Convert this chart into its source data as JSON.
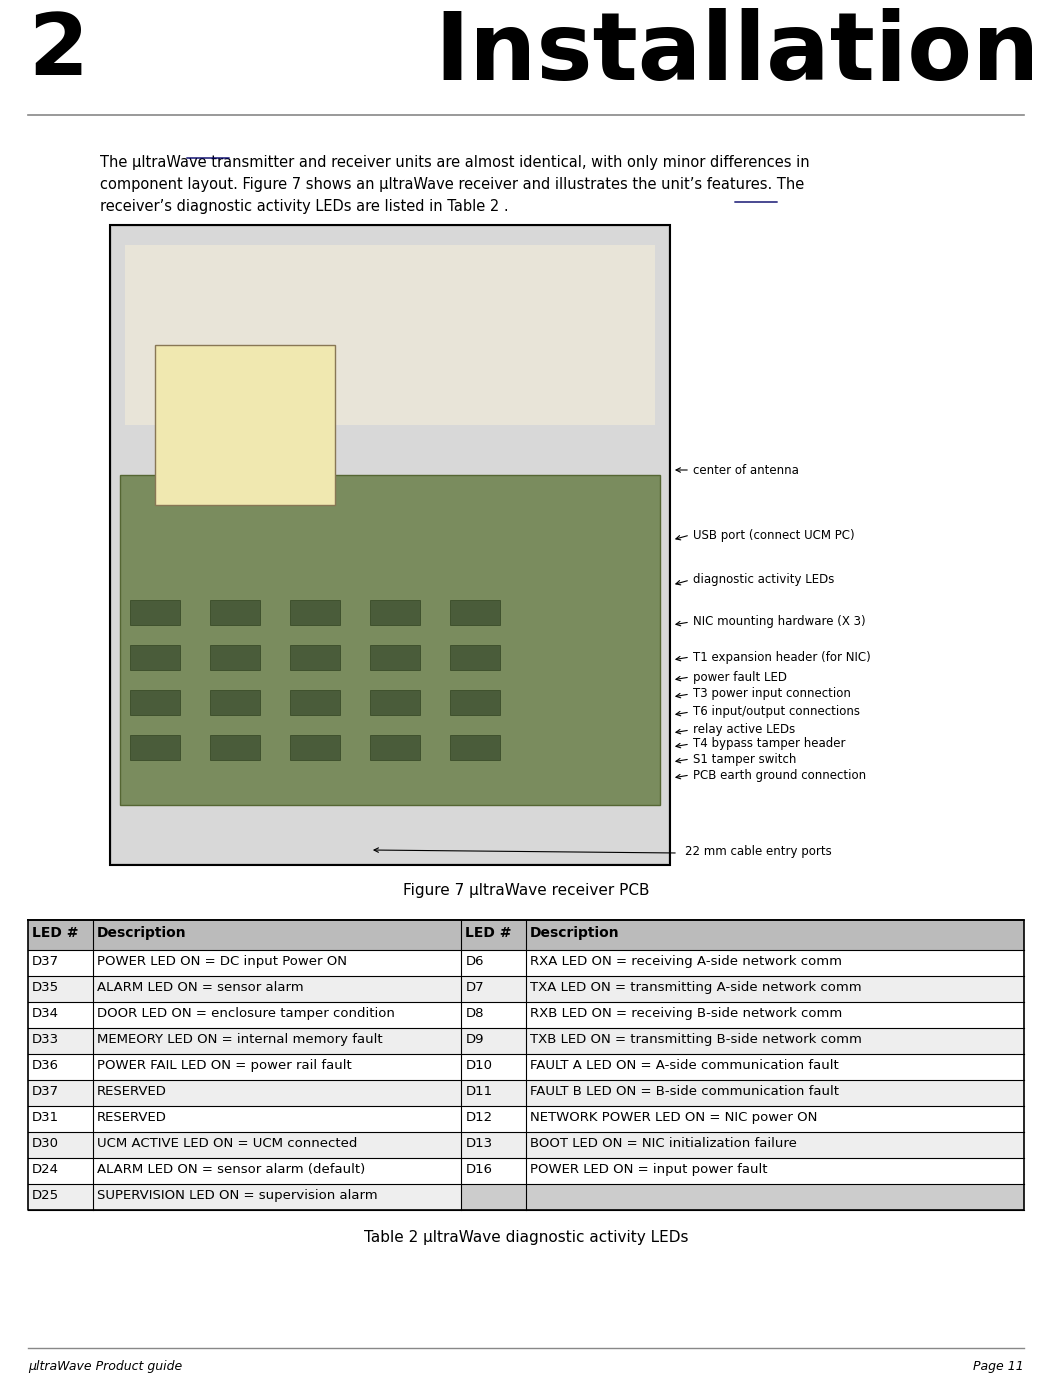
{
  "page_number": "2",
  "title": "Installation",
  "body_text": "The μltraWave transmitter and receiver units are almost identical, with only minor differences in\ncomponent layout. Figure 7 shows an μltraWave receiver and illustrates the unit’s features. The\nreceiver’s diagnostic activity LEDs are listed in Table 2 .",
  "figure_caption": "Figure 7 μltraWave receiver PCB",
  "table_caption": "Table 2 μltraWave diagnostic activity LEDs",
  "footer_left": "μltraWave Product guide",
  "footer_right": "Page 11",
  "annotations": [
    "center of antenna",
    "USB port (connect UCM PC)",
    "diagnostic activity LEDs",
    "NIC mounting hardware (X 3)",
    "T1 expansion header (for NIC)",
    "power fault LED",
    "T3 power input connection",
    "T6 input/output connections",
    "relay active LEDs",
    "T4 bypass tamper header",
    "S1 tamper switch",
    "PCB earth ground connection",
    "22 mm cable entry ports"
  ],
  "table_headers": [
    "LED #",
    "Description",
    "LED #",
    "Description"
  ],
  "table_rows": [
    [
      "D37",
      "POWER LED ON = DC input Power ON",
      "D6",
      "RXA LED ON = receiving A-side network comm"
    ],
    [
      "D35",
      "ALARM LED ON = sensor alarm",
      "D7",
      "TXA LED ON = transmitting A-side network comm"
    ],
    [
      "D34",
      "DOOR LED ON = enclosure tamper condition",
      "D8",
      "RXB LED ON = receiving B-side network comm"
    ],
    [
      "D33",
      "MEMEORY LED ON = internal memory fault",
      "D9",
      "TXB LED ON = transmitting B-side network comm"
    ],
    [
      "D36",
      "POWER FAIL LED ON = power rail fault",
      "D10",
      "FAULT A LED ON = A-side communication fault"
    ],
    [
      "D37",
      "RESERVED",
      "D11",
      "FAULT B LED ON = B-side communication fault"
    ],
    [
      "D31",
      "RESERVED",
      "D12",
      "NETWORK POWER LED ON = NIC power ON"
    ],
    [
      "D30",
      "UCM ACTIVE LED ON = UCM connected",
      "D13",
      "BOOT LED ON = NIC initialization failure"
    ],
    [
      "D24",
      "ALARM LED ON = sensor alarm (default)",
      "D16",
      "POWER LED ON = input power fault"
    ],
    [
      "D25",
      "SUPERVISION LED ON = supervision alarm",
      "",
      ""
    ]
  ],
  "bg_color": "#ffffff",
  "header_bg": "#d3d3d3",
  "table_row_alt": "#e8e8e8",
  "line_color": "#000000",
  "title_color": "#000000",
  "header_line_color": "#555555"
}
